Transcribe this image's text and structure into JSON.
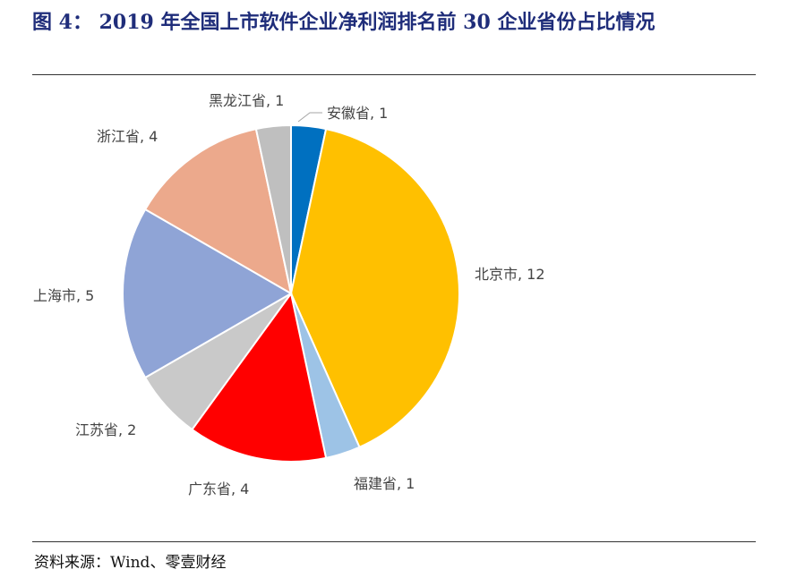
{
  "title": "图 4：  2019 年全国上市软件企业净利润排名前 30 企业省份占比情况",
  "source": "资料来源：Wind、零壹财经",
  "chart_data": {
    "type": "pie",
    "slices": [
      {
        "label": "安徽省, 1",
        "name": "安徽省",
        "value": 1,
        "color": "#0070c0"
      },
      {
        "label": "北京市, 12",
        "name": "北京市",
        "value": 12,
        "color": "#ffc000"
      },
      {
        "label": "福建省, 1",
        "name": "福建省",
        "value": 1,
        "color": "#9dc3e6"
      },
      {
        "label": "广东省, 4",
        "name": "广东省",
        "value": 4,
        "color": "#ff0000"
      },
      {
        "label": "江苏省, 2",
        "name": "江苏省",
        "value": 2,
        "color": "#c9c9c9"
      },
      {
        "label": "上海市, 5",
        "name": "上海市",
        "value": 5,
        "color": "#8fa4d6"
      },
      {
        "label": "浙江省, 4",
        "name": "浙江省",
        "value": 4,
        "color": "#eca98c"
      },
      {
        "label": "黑龙江省, 1",
        "name": "黑龙江省",
        "value": 1,
        "color": "#bfbfbf"
      }
    ]
  }
}
